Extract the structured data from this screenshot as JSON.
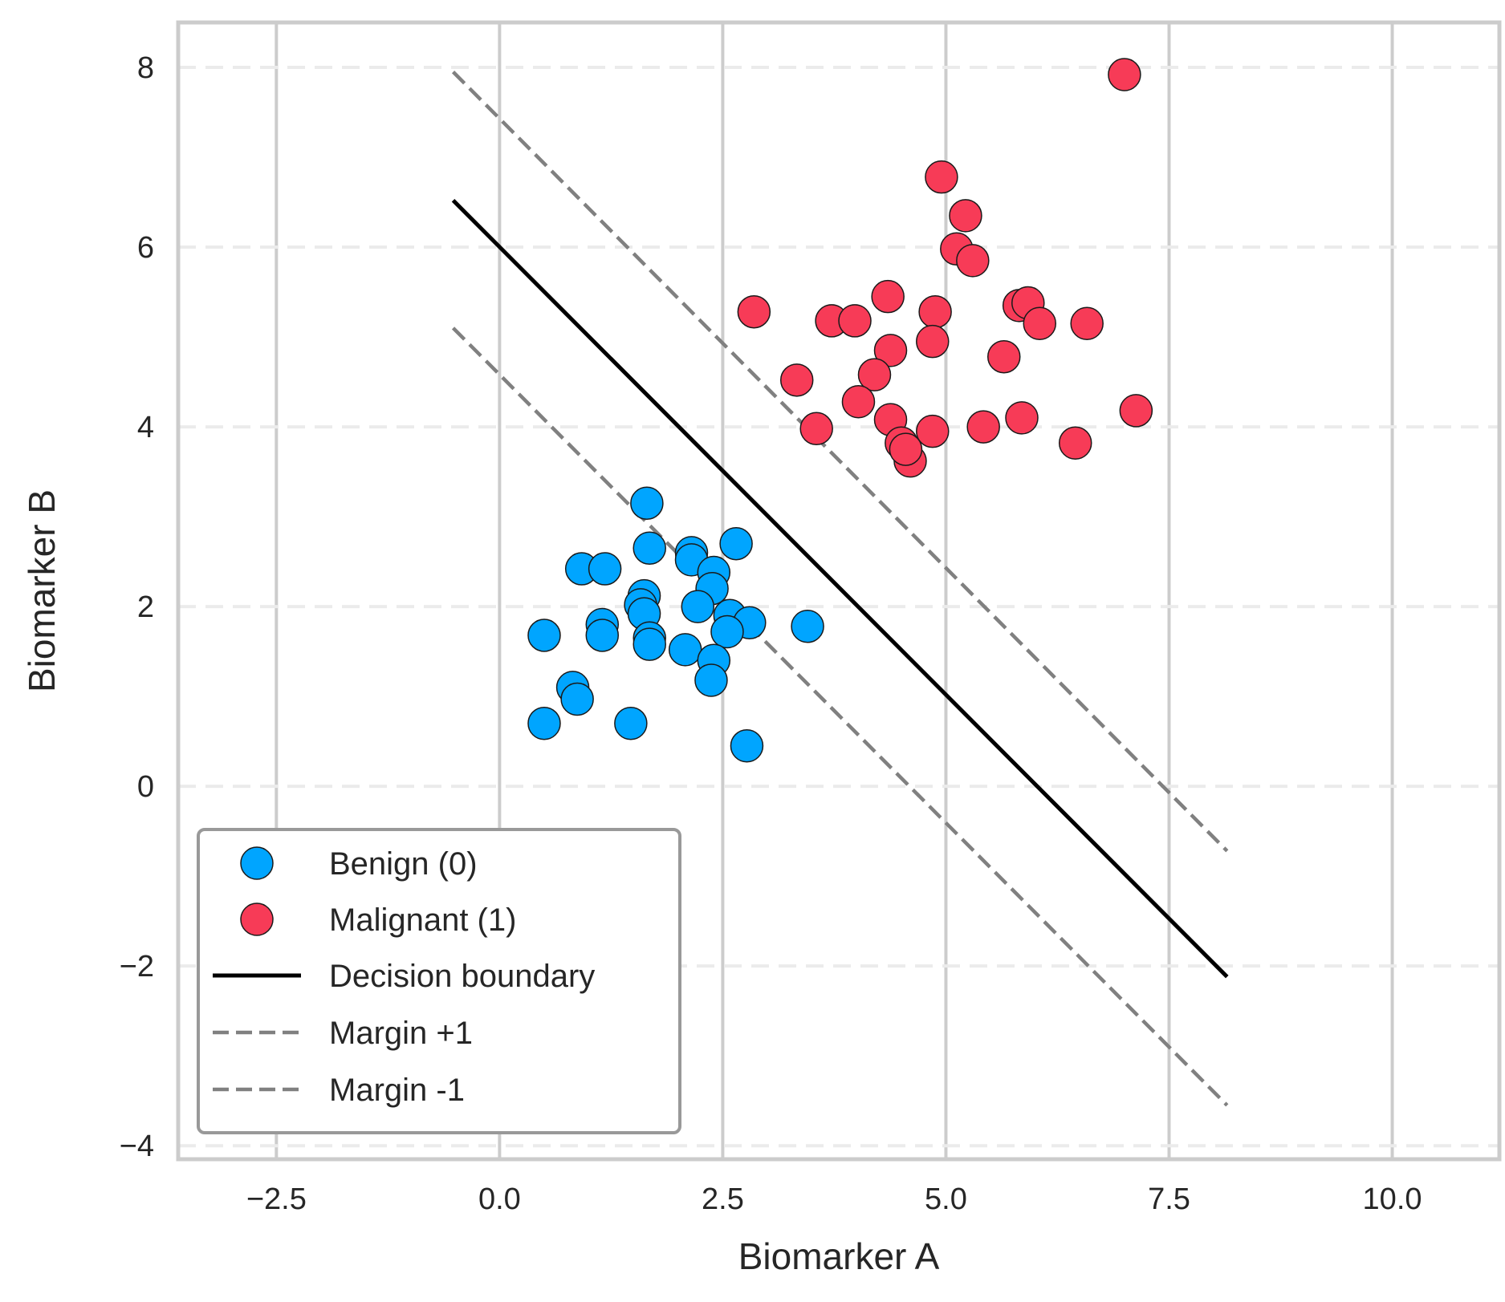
{
  "chart_data": {
    "type": "scatter",
    "xlabel": "Biomarker A",
    "ylabel": "Biomarker B",
    "xlim": [
      -3.6,
      11.2
    ],
    "ylim": [
      -4.15,
      8.5
    ],
    "xticks": [
      -2.5,
      0.0,
      2.5,
      5.0,
      7.5,
      10.0
    ],
    "xtick_labels": [
      "−2.5",
      "0.0",
      "2.5",
      "5.0",
      "7.5",
      "10.0"
    ],
    "yticks": [
      -4,
      -2,
      0,
      2,
      4,
      6,
      8
    ],
    "ytick_labels": [
      "−4",
      "−2",
      "0",
      "2",
      "4",
      "6",
      "8"
    ],
    "grid": {
      "vertical": "solid",
      "horizontal": "dashed"
    },
    "legend_position": "lower-left",
    "series": [
      {
        "name": "Benign (0)",
        "kind": "scatter",
        "color": "#00A5FF",
        "points": [
          [
            1.65,
            3.15
          ],
          [
            1.68,
            2.65
          ],
          [
            2.65,
            2.7
          ],
          [
            0.92,
            2.42
          ],
          [
            1.18,
            2.42
          ],
          [
            2.15,
            2.6
          ],
          [
            2.15,
            2.52
          ],
          [
            2.4,
            2.38
          ],
          [
            2.38,
            2.2
          ],
          [
            1.62,
            2.12
          ],
          [
            1.58,
            2.02
          ],
          [
            2.22,
            2.0
          ],
          [
            1.62,
            1.92
          ],
          [
            2.58,
            1.9
          ],
          [
            2.8,
            1.82
          ],
          [
            1.15,
            1.8
          ],
          [
            3.45,
            1.78
          ],
          [
            2.55,
            1.72
          ],
          [
            0.5,
            1.68
          ],
          [
            1.15,
            1.68
          ],
          [
            1.68,
            1.65
          ],
          [
            1.68,
            1.58
          ],
          [
            2.08,
            1.52
          ],
          [
            2.4,
            1.4
          ],
          [
            0.82,
            1.1
          ],
          [
            0.87,
            0.97
          ],
          [
            2.37,
            1.18
          ],
          [
            0.5,
            0.7
          ],
          [
            1.47,
            0.7
          ],
          [
            2.77,
            0.45
          ]
        ]
      },
      {
        "name": "Malignant (1)",
        "kind": "scatter",
        "color": "#F73B57",
        "points": [
          [
            7.0,
            7.92
          ],
          [
            4.95,
            6.78
          ],
          [
            5.22,
            6.35
          ],
          [
            5.12,
            5.98
          ],
          [
            5.3,
            5.85
          ],
          [
            4.35,
            5.45
          ],
          [
            2.85,
            5.28
          ],
          [
            4.88,
            5.28
          ],
          [
            3.72,
            5.18
          ],
          [
            3.98,
            5.18
          ],
          [
            5.82,
            5.35
          ],
          [
            5.92,
            5.38
          ],
          [
            6.05,
            5.15
          ],
          [
            6.58,
            5.15
          ],
          [
            4.85,
            4.95
          ],
          [
            4.38,
            4.85
          ],
          [
            5.65,
            4.78
          ],
          [
            4.2,
            4.58
          ],
          [
            3.33,
            4.52
          ],
          [
            4.02,
            4.28
          ],
          [
            4.38,
            4.08
          ],
          [
            3.55,
            3.98
          ],
          [
            4.85,
            3.95
          ],
          [
            5.42,
            4.0
          ],
          [
            5.85,
            4.1
          ],
          [
            7.13,
            4.18
          ],
          [
            4.5,
            3.82
          ],
          [
            4.6,
            3.62
          ],
          [
            4.55,
            3.75
          ],
          [
            6.45,
            3.82
          ]
        ]
      },
      {
        "name": "Decision boundary",
        "kind": "line",
        "color": "#000000",
        "dash": "solid",
        "points": [
          [
            -0.52,
            6.52
          ],
          [
            8.15,
            -2.12
          ]
        ]
      },
      {
        "name": "Margin +1",
        "kind": "line",
        "color": "#808080",
        "dash": "dashed",
        "points": [
          [
            -0.52,
            7.95
          ],
          [
            8.15,
            -0.72
          ]
        ]
      },
      {
        "name": "Margin -1",
        "kind": "line",
        "color": "#808080",
        "dash": "dashed",
        "points": [
          [
            -0.52,
            5.1
          ],
          [
            8.15,
            -3.55
          ]
        ]
      }
    ]
  }
}
